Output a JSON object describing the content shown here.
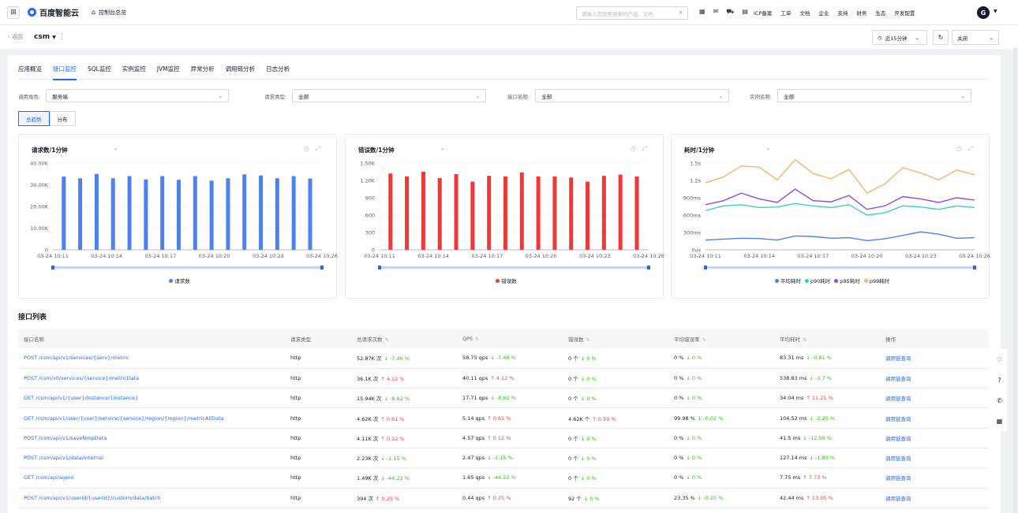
{
  "topbar": {
    "brand": "百度智能云",
    "console": "控制台总览",
    "search_placeholder": "请输入您想要搜索的产品、文档",
    "nav": [
      "ICP备案",
      "工单",
      "文档",
      "企业",
      "支持",
      "财务",
      "生态",
      "开发配置"
    ],
    "user_initial": "G"
  },
  "subbar": {
    "back": "返回",
    "app": "csm",
    "time_range": "近15分钟",
    "auto_refresh": "关闭"
  },
  "tabs": [
    "应用概览",
    "接口监控",
    "SQL监控",
    "实例监控",
    "JVM监控",
    "异常分析",
    "调用链分析",
    "日志分析"
  ],
  "active_tab": "接口监控",
  "filters": [
    {
      "label": "调用角色:",
      "value": "服务端"
    },
    {
      "label": "请求类型:",
      "value": "全部"
    },
    {
      "label": "接口名称:",
      "value": "全部"
    },
    {
      "label": "实例名称:",
      "value": "全部"
    }
  ],
  "view_toggle": [
    "总趋势",
    "分布"
  ],
  "chart_data": [
    {
      "type": "bar",
      "title": "请求数/1分钟",
      "x": [
        "03-24 10:11",
        "03-24 10:12",
        "03-24 10:13",
        "03-24 10:14",
        "03-24 10:15",
        "03-24 10:16",
        "03-24 10:17",
        "03-24 10:18",
        "03-24 10:19",
        "03-24 10:20",
        "03-24 10:21",
        "03-24 10:22",
        "03-24 10:23",
        "03-24 10:24",
        "03-24 10:25",
        "03-24 10:26"
      ],
      "x_ticks": [
        "03-24 10:11",
        "03-24 10:14",
        "03-24 10:17",
        "03-24 10:20",
        "03-24 10:23",
        "03-24 10:26"
      ],
      "y_ticks": [
        "0",
        "10.00K",
        "20.00K",
        "30.00K",
        "40.00K"
      ],
      "ylim": [
        0,
        40000
      ],
      "color": "#4e80f0",
      "series": [
        {
          "name": "请求数",
          "values": [
            33800,
            33000,
            35000,
            33000,
            34000,
            32500,
            34000,
            32300,
            34000,
            31900,
            33000,
            34800,
            34300,
            33000,
            34000,
            32900
          ]
        }
      ]
    },
    {
      "type": "bar",
      "title": "错误数/1分钟",
      "x": [
        "03-24 10:11",
        "03-24 10:12",
        "03-24 10:13",
        "03-24 10:14",
        "03-24 10:15",
        "03-24 10:16",
        "03-24 10:17",
        "03-24 10:18",
        "03-24 10:19",
        "03-24 10:20",
        "03-24 10:21",
        "03-24 10:22",
        "03-24 10:23",
        "03-24 10:24",
        "03-24 10:25",
        "03-24 10:26"
      ],
      "x_ticks": [
        "03-24 10:11",
        "03-24 10:14",
        "03-24 10:17",
        "03-24 10:20",
        "03-24 10:23",
        "03-24 10:26"
      ],
      "y_ticks": [
        "0",
        "300",
        "600",
        "900",
        "1.20K",
        "1.50K"
      ],
      "ylim": [
        0,
        1500
      ],
      "color": "#ef3838",
      "series": [
        {
          "name": "错误数",
          "values": [
            1320,
            1270,
            1350,
            1240,
            1310,
            1180,
            1280,
            1270,
            1340,
            1270,
            1270,
            1250,
            1180,
            1280,
            1300,
            1270
          ]
        }
      ]
    },
    {
      "type": "line",
      "title": "耗时/1分钟",
      "x": [
        "03-24 10:11",
        "03-24 10:12",
        "03-24 10:13",
        "03-24 10:14",
        "03-24 10:15",
        "03-24 10:16",
        "03-24 10:17",
        "03-24 10:18",
        "03-24 10:19",
        "03-24 10:20",
        "03-24 10:21",
        "03-24 10:22",
        "03-24 10:23",
        "03-24 10:24",
        "03-24 10:25",
        "03-24 10:26"
      ],
      "x_ticks": [
        "03-24 10:11",
        "03-24 10:14",
        "03-24 10:17",
        "03-24 10:20",
        "03-24 10:23",
        "03-24 10:26"
      ],
      "y_ticks": [
        "0us",
        "300ms",
        "600ms",
        "900ms",
        "1.2s",
        "1.5s"
      ],
      "ylim": [
        0,
        1500
      ],
      "series": [
        {
          "name": "平均耗时",
          "color": "#4e80f0",
          "values": [
            170,
            185,
            200,
            195,
            170,
            240,
            230,
            200,
            210,
            160,
            190,
            250,
            310,
            270,
            200,
            210
          ]
        },
        {
          "name": "p90耗时",
          "color": "#3dcfc3",
          "values": [
            680,
            760,
            780,
            730,
            740,
            800,
            760,
            730,
            780,
            600,
            640,
            760,
            740,
            700,
            760,
            730
          ]
        },
        {
          "name": "p95耗时",
          "color": "#8c4ae8",
          "values": [
            780,
            850,
            980,
            880,
            820,
            1050,
            850,
            830,
            940,
            700,
            760,
            920,
            880,
            820,
            900,
            860
          ]
        },
        {
          "name": "p99耗时",
          "color": "#f8b26a",
          "values": [
            1160,
            1260,
            1450,
            1430,
            1210,
            1560,
            1320,
            1230,
            1390,
            980,
            1140,
            1420,
            1330,
            1210,
            1380,
            1300
          ]
        }
      ]
    }
  ],
  "table": {
    "title": "接口列表",
    "headers": [
      "接口名称",
      "请求类型",
      "总请求次数",
      "QPS",
      "错误数",
      "平均错误率",
      "平均耗时",
      "操作"
    ],
    "rows": [
      {
        "name": "POST /csm/api/v1/services/{serv}/metric",
        "type": "http",
        "total": "52.87K 次",
        "total_d": "↓ -7.46 %",
        "total_up": false,
        "qps": "58.75 qps",
        "qps_d": "↓ -7.46 %",
        "qps_up": false,
        "err": "0 个",
        "err_d": "↓ 0 %",
        "err_up": false,
        "rate": "0 %",
        "rate_d": "↓ 0 %",
        "rate_up": false,
        "lat": "83.31 ms",
        "lat_d": "↓ -0.81 %",
        "lat_up": false,
        "op": "调用链查询"
      },
      {
        "name": "POST /csm/v0/services/{service}/metricData",
        "type": "http",
        "total": "36.1K 次",
        "total_d": "↑ 4.12 %",
        "total_up": true,
        "qps": "40.11 qps",
        "qps_d": "↑ 4.12 %",
        "qps_up": true,
        "err": "0 个",
        "err_d": "↓ 0 %",
        "err_up": false,
        "rate": "0 %",
        "rate_d": "↓ 0 %",
        "rate_up": false,
        "lat": "538.83 ms",
        "lat_d": "↓ -3.7 %",
        "lat_up": false,
        "op": "调用链查询"
      },
      {
        "name": "GET /csm/api/v1/{user}/instance/{instance}",
        "type": "http",
        "total": "15.94K 次",
        "total_d": "↓ -8.62 %",
        "total_up": false,
        "qps": "17.71 qps",
        "qps_d": "↓ -8.62 %",
        "qps_up": false,
        "err": "0 个",
        "err_d": "↓ 0 %",
        "err_up": false,
        "rate": "0 %",
        "rate_d": "↓ 0 %",
        "rate_up": false,
        "lat": "34.04 ms",
        "lat_d": "↑ 11.21 %",
        "lat_up": true,
        "op": "调用链查询"
      },
      {
        "name": "GET /csm/api/v1/user/{user}/service/{service}/region/{region}/metricAllData",
        "type": "http",
        "total": "4.62K 次",
        "total_d": "↑ 0.61 %",
        "total_up": true,
        "qps": "5.14 qps",
        "qps_d": "↑ 0.61 %",
        "qps_up": true,
        "err": "4.62K 个",
        "err_d": "↑ 0.59 %",
        "err_up": true,
        "rate": "99.98 %",
        "rate_d": "↓ -0.02 %",
        "rate_up": false,
        "lat": "104.52 ms",
        "lat_d": "↓ -2.25 %",
        "lat_up": false,
        "op": "调用链查询"
      },
      {
        "name": "POST /csm/api/v1/saveNmpData",
        "type": "http",
        "total": "4.11K 次",
        "total_d": "↑ 0.12 %",
        "total_up": true,
        "qps": "4.57 qps",
        "qps_d": "↑ 0.12 %",
        "qps_up": true,
        "err": "0 个",
        "err_d": "↓ 0 %",
        "err_up": false,
        "rate": "0 %",
        "rate_d": "↓ 0 %",
        "rate_up": false,
        "lat": "41.5 ms",
        "lat_d": "↓ -12.56 %",
        "lat_up": false,
        "op": "调用链查询"
      },
      {
        "name": "POST /csm/api/v1/data/internal",
        "type": "http",
        "total": "2.23K 次",
        "total_d": "↓ -1.15 %",
        "total_up": false,
        "qps": "2.47 qps",
        "qps_d": "↓ -1.15 %",
        "qps_up": false,
        "err": "0 个",
        "err_d": "↓ 0 %",
        "err_up": false,
        "rate": "0 %",
        "rate_d": "↓ 0 %",
        "rate_up": false,
        "lat": "127.14 ms",
        "lat_d": "↓ -1.83 %",
        "lat_up": false,
        "op": "调用链查询"
      },
      {
        "name": "GET /csm/api/agent",
        "type": "http",
        "total": "1.49K 次",
        "total_d": "↓ -44.22 %",
        "total_up": false,
        "qps": "1.65 qps",
        "qps_d": "↓ -44.22 %",
        "qps_up": false,
        "err": "0 个",
        "err_d": "↓ 0 %",
        "err_up": false,
        "rate": "0 %",
        "rate_d": "↓ 0 %",
        "rate_up": false,
        "lat": "7.75 ms",
        "lat_d": "↑ 7.73 %",
        "lat_up": true,
        "op": "调用链查询"
      },
      {
        "name": "POST /csm/api/v1/userId/{userId}/custom/data/batch",
        "type": "http",
        "total": "394 次",
        "total_d": "↑ 0.25 %",
        "total_up": true,
        "qps": "0.44 qps",
        "qps_d": "↑ 0.25 %",
        "qps_up": true,
        "err": "92 个",
        "err_d": "↓ 0 %",
        "err_up": false,
        "rate": "23.35 %",
        "rate_d": "↓ -0.25 %",
        "rate_up": false,
        "lat": "42.44 ms",
        "lat_d": "↑ 13.05 %",
        "lat_up": true,
        "op": "调用链查询"
      }
    ]
  }
}
